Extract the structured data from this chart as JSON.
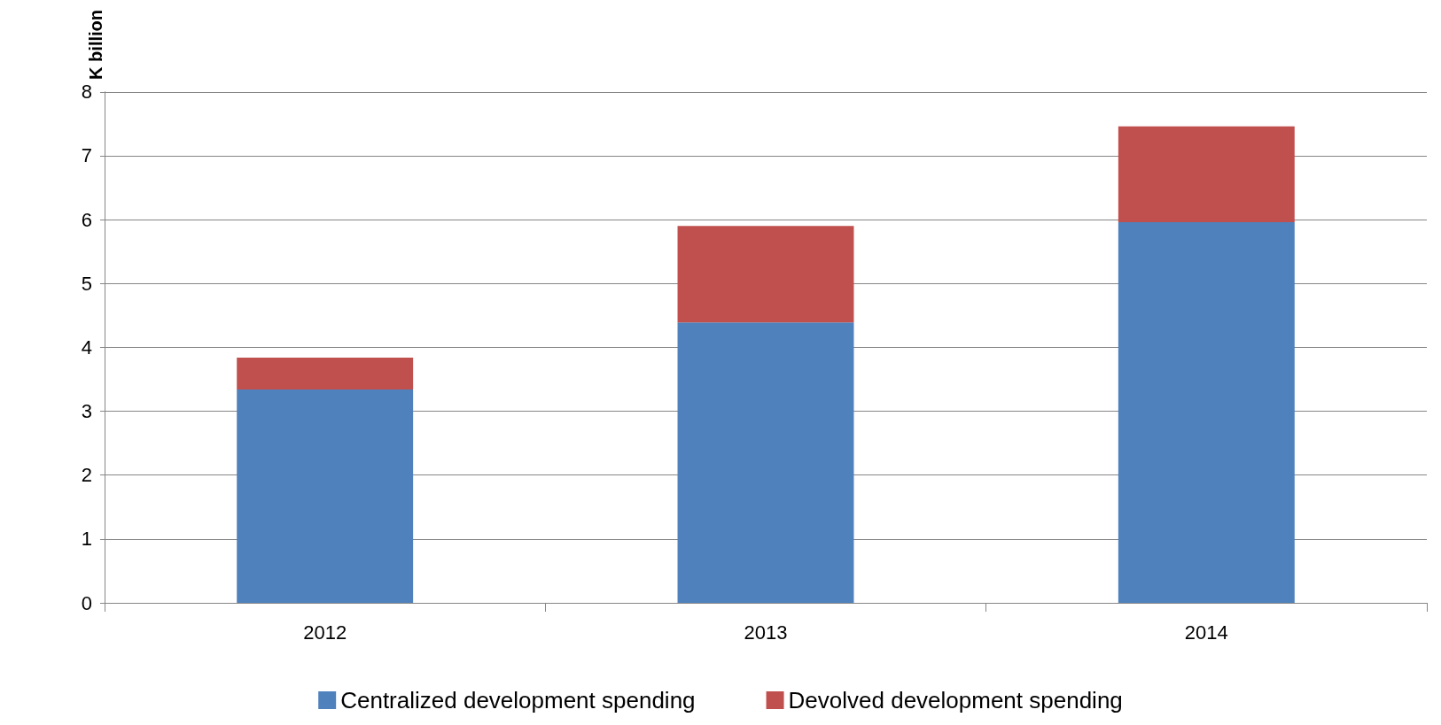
{
  "chart_data": {
    "type": "bar",
    "stacked": true,
    "ylabel": "K billion",
    "categories": [
      "2012",
      "2013",
      "2014"
    ],
    "series": [
      {
        "name": "Centralized development spending",
        "color": "#4f81bd",
        "values": [
          3.34,
          4.39,
          5.96
        ]
      },
      {
        "name": "Devolved development spending",
        "color": "#c0504d",
        "values": [
          0.5,
          1.51,
          1.5
        ]
      }
    ],
    "ylim": [
      0,
      8
    ],
    "yticks": [
      0,
      1,
      2,
      3,
      4,
      5,
      6,
      7,
      8
    ],
    "grid": "y",
    "legend": "bottom"
  }
}
